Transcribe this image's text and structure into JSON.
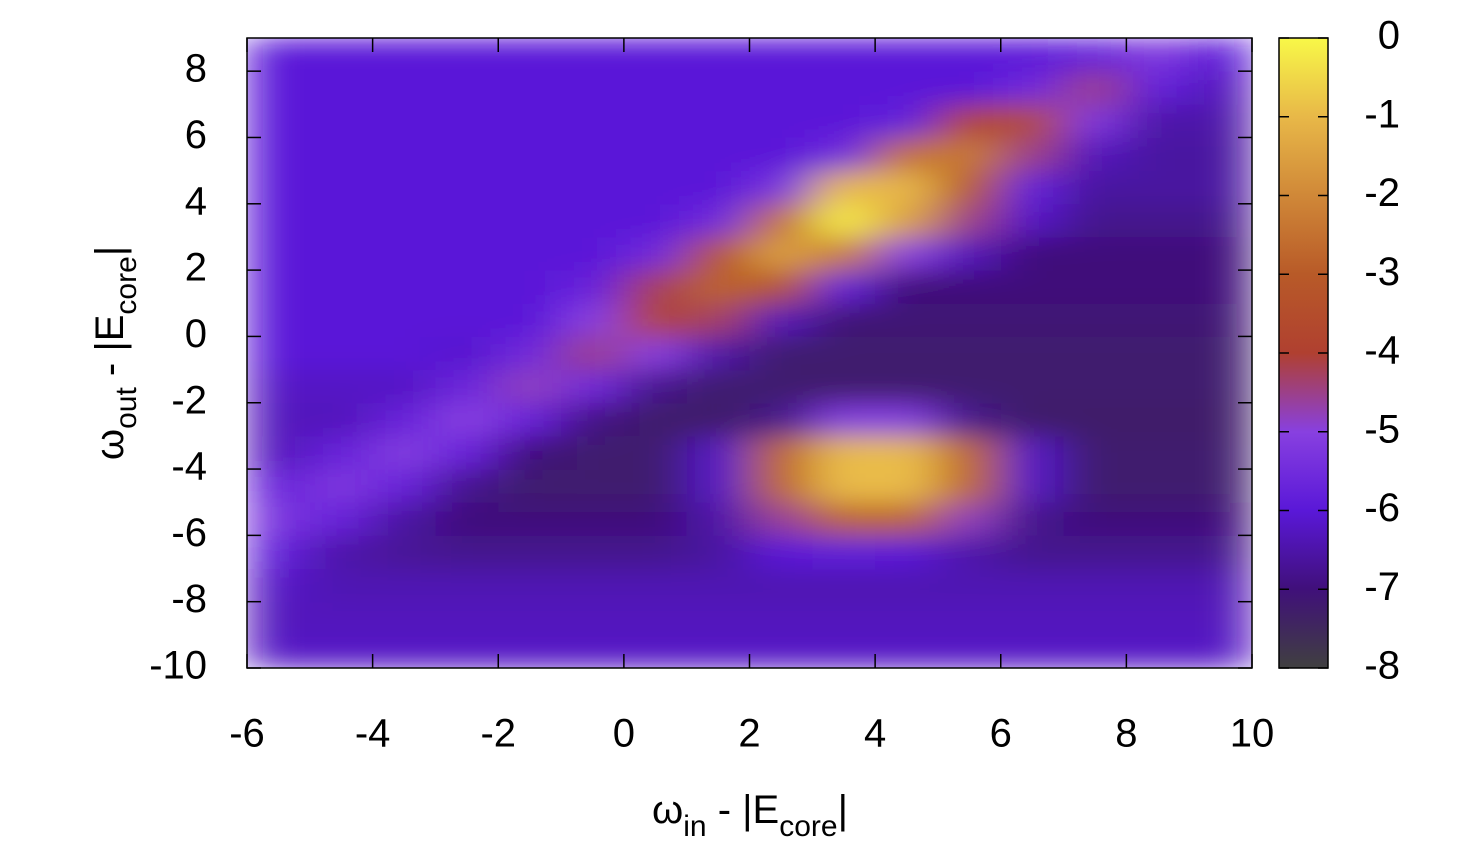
{
  "chart_data": {
    "type": "heatmap",
    "xlabel": [
      {
        "text": "ω"
      },
      {
        "text": "in",
        "sub": true
      },
      {
        "text": " - |E"
      },
      {
        "text": "core",
        "sub": true
      },
      {
        "text": "|"
      }
    ],
    "ylabel": [
      {
        "text": "ω"
      },
      {
        "text": "out",
        "sub": true
      },
      {
        "text": " - |E"
      },
      {
        "text": "core",
        "sub": true
      },
      {
        "text": "|"
      }
    ],
    "xlim": [
      -6,
      10
    ],
    "xticks": [
      -6,
      -4,
      -2,
      0,
      2,
      4,
      6,
      8,
      10
    ],
    "ylim": [
      -10,
      9
    ],
    "yticks": [
      -10,
      -8,
      -6,
      -4,
      -2,
      0,
      2,
      4,
      6,
      8
    ],
    "zlim": [
      -8,
      0
    ],
    "zticks": [
      0,
      -1,
      -2,
      -3,
      -4,
      -5,
      -6,
      -7,
      -8
    ],
    "colormap": [
      "#404040",
      "#40107a",
      "#5a18d8",
      "#8840e0",
      "#b04030",
      "#b85a28",
      "#d08838",
      "#e8b848",
      "#f8f848"
    ],
    "x": [
      -5.5,
      -4.5,
      -3.5,
      -2.5,
      -1.5,
      -0.5,
      0.5,
      1.5,
      2.5,
      3.5,
      4.5,
      5.5,
      6.5,
      7.5,
      8.5,
      9.5
    ],
    "y": [
      -9.5,
      -8.5,
      -7.5,
      -6.5,
      -5.5,
      -4.5,
      -3.5,
      -2.5,
      -1.5,
      -0.5,
      0.5,
      1.5,
      2.5,
      3.5,
      4.5,
      5.5,
      6.5,
      7.5,
      8.5
    ],
    "z": [
      [
        -6.2,
        -6.2,
        -6.2,
        -6.2,
        -6.2,
        -6.2,
        -6.2,
        -6.2,
        -6.2,
        -6.2,
        -6.2,
        -6.2,
        -6.2,
        -6.2,
        -6.2,
        -6.2
      ],
      [
        -6.3,
        -6.3,
        -6.3,
        -6.3,
        -6.3,
        -6.3,
        -6.3,
        -6.3,
        -6.3,
        -6.3,
        -6.3,
        -6.3,
        -6.3,
        -6.3,
        -6.3,
        -6.3
      ],
      [
        -6.2,
        -6.4,
        -6.4,
        -6.4,
        -6.4,
        -6.4,
        -6.4,
        -6.4,
        -6.4,
        -6.4,
        -6.4,
        -6.4,
        -6.4,
        -6.4,
        -6.4,
        -6.4
      ],
      [
        -5.8,
        -6.5,
        -6.7,
        -6.8,
        -6.8,
        -6.8,
        -6.8,
        -6.6,
        -6.0,
        -5.9,
        -6.0,
        -6.5,
        -6.8,
        -6.8,
        -6.8,
        -6.8
      ],
      [
        -5.3,
        -5.7,
        -6.6,
        -7,
        -7,
        -7,
        -7,
        -6.5,
        -4.6,
        -2.8,
        -2.8,
        -4.8,
        -6.8,
        -7,
        -7,
        -7
      ],
      [
        -5.7,
        -5.2,
        -5.7,
        -6.8,
        -7.2,
        -7.2,
        -7.2,
        -6.2,
        -2.7,
        -0.95,
        -0.95,
        -2.7,
        -6.2,
        -7.2,
        -7.2,
        -7.2
      ],
      [
        -6.3,
        -5.7,
        -5.1,
        -5.7,
        -7,
        -7.2,
        -7.2,
        -6.2,
        -2.7,
        -0.95,
        -0.95,
        -2.7,
        -6.2,
        -7.2,
        -7.2,
        -7.2
      ],
      [
        -6.3,
        -6.3,
        -5.7,
        -5.0,
        -5.7,
        -6.9,
        -7.3,
        -7.3,
        -6.8,
        -5.1,
        -5.1,
        -6.8,
        -7.3,
        -7.3,
        -7.3,
        -7.3
      ],
      [
        -6.2,
        -6.2,
        -6.2,
        -5.6,
        -4.8,
        -5.5,
        -6.8,
        -7.2,
        -7.2,
        -7.2,
        -7.2,
        -7.2,
        -7.2,
        -7.2,
        -7.2,
        -7.2
      ],
      [
        -6,
        -6,
        -6,
        -6.1,
        -5.5,
        -4.5,
        -5.0,
        -6.5,
        -7.2,
        -7.2,
        -7.2,
        -7.2,
        -7.2,
        -7.2,
        -7.2,
        -7.2
      ],
      [
        -6,
        -6,
        -6,
        -6,
        -6,
        -5.0,
        -3.8,
        -4.3,
        -6.3,
        -7.1,
        -7.1,
        -7.1,
        -7.1,
        -7.1,
        -7.1,
        -7.1
      ],
      [
        -6,
        -6,
        -6,
        -6,
        -6,
        -5.7,
        -4.2,
        -2.8,
        -3.3,
        -5.8,
        -7,
        -7,
        -7,
        -7,
        -7,
        -7
      ],
      [
        -6,
        -6,
        -6,
        -6,
        -6,
        -6,
        -5.5,
        -3.2,
        -1.5,
        -2.3,
        -5.0,
        -6.3,
        -7,
        -7,
        -7,
        -7
      ],
      [
        -6,
        -6,
        -6,
        -6,
        -6,
        -6,
        -6,
        -5.5,
        -2.5,
        -0.2,
        -1.5,
        -4.5,
        -6.2,
        -6.8,
        -6.8,
        -6.8
      ],
      [
        -6,
        -6,
        -6,
        -6,
        -6,
        -6,
        -6,
        -6,
        -5.3,
        -1.0,
        -1.0,
        -3.0,
        -5.8,
        -6.6,
        -6.6,
        -6.6
      ],
      [
        -6,
        -6,
        -6,
        -6,
        -6,
        -6,
        -6,
        -6,
        -6,
        -5.5,
        -2.5,
        -2.3,
        -4.5,
        -6.3,
        -6.6,
        -6.6
      ],
      [
        -6,
        -6,
        -6,
        -6,
        -6,
        -6,
        -6,
        -6,
        -6,
        -6,
        -5.8,
        -3.8,
        -3.5,
        -5.2,
        -6.5,
        -6.5
      ],
      [
        -6,
        -6,
        -6,
        -6,
        -6,
        -6,
        -6,
        -6,
        -6,
        -6,
        -6,
        -6,
        -5.5,
        -4.5,
        -5.8,
        -6.3
      ],
      [
        -6,
        -6,
        -6,
        -6,
        -6,
        -6,
        -6,
        -6,
        -6,
        -6,
        -6,
        -6,
        -6,
        -5.8,
        -5.2,
        -5.9
      ]
    ]
  }
}
